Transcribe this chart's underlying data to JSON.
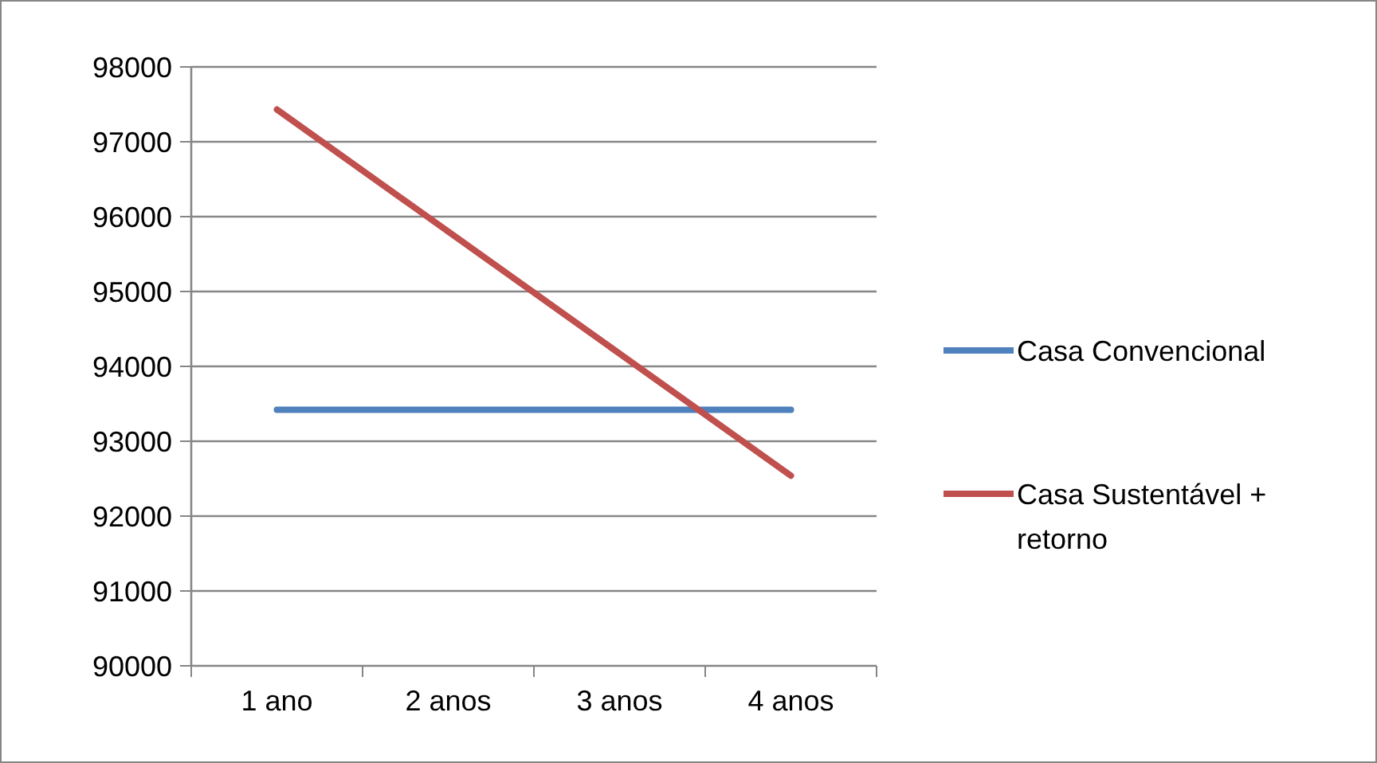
{
  "chart_data": {
    "type": "line",
    "categories": [
      "1 ano",
      "2 anos",
      "3 anos",
      "4 anos"
    ],
    "series": [
      {
        "name": "Casa Convencional",
        "color": "#4f81bd",
        "values": [
          93420,
          93420,
          93420,
          93420
        ]
      },
      {
        "name": "Casa Sustentável + retorno",
        "color": "#c0504d",
        "values": [
          97430,
          95800,
          94170,
          92540
        ]
      }
    ],
    "ylim": [
      90000,
      98000
    ],
    "yticks": [
      90000,
      91000,
      92000,
      93000,
      94000,
      95000,
      96000,
      97000,
      98000
    ],
    "grid": "y",
    "legend": "right",
    "marker": "none",
    "line_style": "solid"
  }
}
